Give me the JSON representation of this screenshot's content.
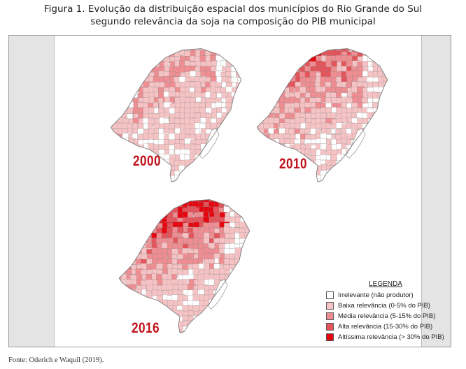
{
  "figure": {
    "title_line1": "Figura 1. Evolução da distribuição espacial dos municípios do Rio Grande do Sul",
    "title_line2": "segundo relevância da soja na composição do PIB municipal"
  },
  "maps": [
    {
      "year": "2000",
      "intensity": 0.35
    },
    {
      "year": "2010",
      "intensity": 0.6
    },
    {
      "year": "2016",
      "intensity": 0.85
    }
  ],
  "legend": {
    "title": "LEGENDA",
    "items": [
      {
        "label": "Irrelevante (não produtor)",
        "color": "#ffffff"
      },
      {
        "label": "Baixa relevância (0-5% do PIB)",
        "color": "#f6c3c5"
      },
      {
        "label": "Média relevância (5-15% do PIB)",
        "color": "#ee8e92"
      },
      {
        "label": "Alta relevância (15-30% do PIB)",
        "color": "#e4545b"
      },
      {
        "label": "Altíssima relevância (> 30% do PIB)",
        "color": "#e5060f"
      }
    ]
  },
  "source": "Fonte: Oderich e Waquil (2019)."
}
